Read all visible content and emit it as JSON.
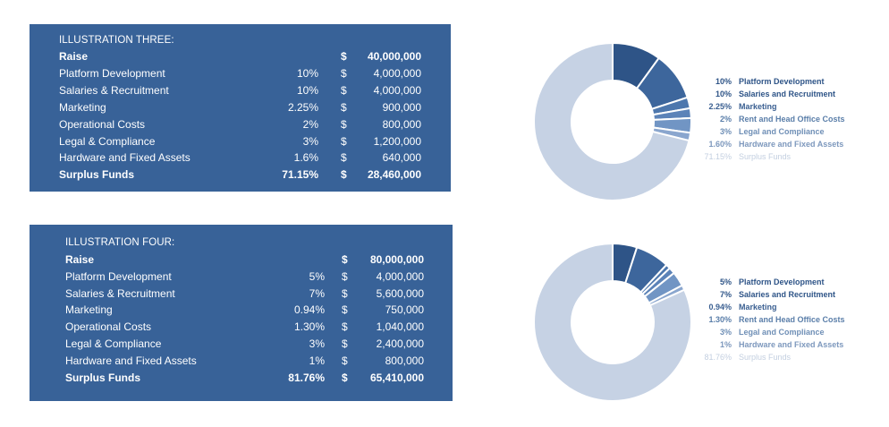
{
  "illustration_three": {
    "title": "ILLUSTRATION THREE:",
    "raise": {
      "label": "Raise",
      "currency": "$",
      "amount": "40,000,000"
    },
    "items": [
      {
        "label": "Platform Development",
        "percent": "10%",
        "currency": "$",
        "amount": "4,000,000"
      },
      {
        "label": "Salaries & Recruitment",
        "percent": "10%",
        "currency": "$",
        "amount": "4,000,000"
      },
      {
        "label": "Marketing",
        "percent": "2.25%",
        "currency": "$",
        "amount": "900,000"
      },
      {
        "label": "Operational Costs",
        "percent": "2%",
        "currency": "$",
        "amount": "800,000"
      },
      {
        "label": "Legal & Compliance",
        "percent": "3%",
        "currency": "$",
        "amount": "1,200,000"
      },
      {
        "label": "Hardware and Fixed Assets",
        "percent": "1.6%",
        "currency": "$",
        "amount": "640,000"
      }
    ],
    "surplus": {
      "label": "Surplus Funds",
      "percent": "71.15%",
      "currency": "$",
      "amount": "28,460,000"
    }
  },
  "illustration_four": {
    "title": "ILLUSTRATION FOUR:",
    "raise": {
      "label": "Raise",
      "currency": "$",
      "amount": "80,000,000"
    },
    "items": [
      {
        "label": "Platform Development",
        "percent": "5%",
        "currency": "$",
        "amount": "4,000,000"
      },
      {
        "label": "Salaries & Recruitment",
        "percent": "7%",
        "currency": "$",
        "amount": "5,600,000"
      },
      {
        "label": "Marketing",
        "percent": "0.94%",
        "currency": "$",
        "amount": "750,000"
      },
      {
        "label": "Operational Costs",
        "percent": "1.30%",
        "currency": "$",
        "amount": "1,040,000"
      },
      {
        "label": "Legal & Compliance",
        "percent": "3%",
        "currency": "$",
        "amount": "2,400,000"
      },
      {
        "label": "Hardware and Fixed Assets",
        "percent": "1%",
        "currency": "$",
        "amount": "800,000"
      }
    ],
    "surplus": {
      "label": "Surplus Funds",
      "percent": "81.76%",
      "currency": "$",
      "amount": "65,410,000"
    }
  },
  "colors": {
    "panel": "#386298",
    "slices": [
      "#2e5487",
      "#3d669c",
      "#4d77ad",
      "#5c83b8",
      "#7195c4",
      "#8aa6ce",
      "#c6d2e4"
    ],
    "legend_text": [
      "#2e5487",
      "#2e5487",
      "#3a5f91",
      "#5a7ea9",
      "#6f8fb6",
      "#7d98bd",
      "#c3cfe0"
    ]
  },
  "chart_data": [
    {
      "type": "pie",
      "categories": [
        "Platform Development",
        "Salaries and Recruitment",
        "Marketing",
        "Rent and Head Office Costs",
        "Legal and Compliance",
        "Hardware and Fixed Assets",
        "Surplus Funds"
      ],
      "values": [
        10,
        10,
        2.25,
        2,
        3,
        1.6,
        71.15
      ],
      "labels": [
        "10%",
        "10%",
        "2.25%",
        "2%",
        "3%",
        "1.60%",
        "71.15%"
      ],
      "legend": "right"
    },
    {
      "type": "pie",
      "categories": [
        "Platform Development",
        "Salaries and Recruitment",
        "Marketing",
        "Rent and Head Office Costs",
        "Legal and Compliance",
        "Hardware and Fixed Assets",
        "Surplus Funds"
      ],
      "values": [
        5,
        7,
        0.94,
        1.3,
        3,
        1,
        81.76
      ],
      "labels": [
        "5%",
        "7%",
        "0.94%",
        "1.30%",
        "3%",
        "1%",
        "81.76%"
      ],
      "legend": "right"
    }
  ]
}
